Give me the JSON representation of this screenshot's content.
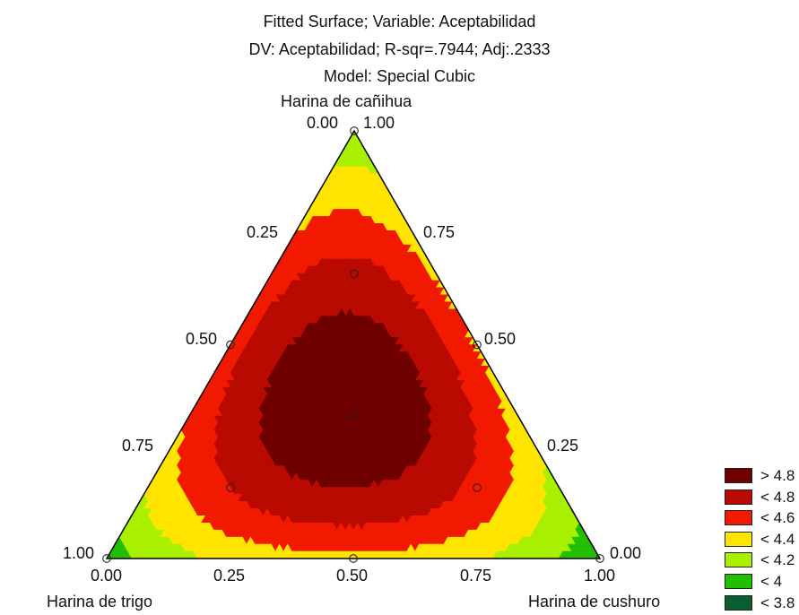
{
  "chart_data": {
    "type": "ternary contour",
    "title_lines": [
      "Fitted Surface; Variable: Aceptabilidad",
      "DV: Aceptabilidad; R-sqr=.7944; Adj:.2333",
      "Model: Special Cubic"
    ],
    "vertices": {
      "top": "Harina de cañihua",
      "bottom_left": "Harina de trigo",
      "bottom_right": "Harina de cushuro"
    },
    "ticks": {
      "left": [
        "0.00",
        "0.25",
        "0.50",
        "0.75",
        "1.00"
      ],
      "right": [
        "1.00",
        "0.75",
        "0.50",
        "0.25",
        "0.00"
      ],
      "bottom": [
        "0.00",
        "0.25",
        "0.50",
        "0.75",
        "1.00"
      ]
    },
    "design_points": [
      {
        "trigo": 0,
        "cushuro": 0,
        "canihua": 1
      },
      {
        "trigo": 0.5,
        "cushuro": 0,
        "canihua": 0.5
      },
      {
        "trigo": 0,
        "cushuro": 0.5,
        "canihua": 0.5
      },
      {
        "trigo": 1,
        "cushuro": 0,
        "canihua": 0
      },
      {
        "trigo": 0.5,
        "cushuro": 0.5,
        "canihua": 0
      },
      {
        "trigo": 0,
        "cushuro": 1,
        "canihua": 0
      },
      {
        "trigo": 0.333,
        "cushuro": 0.333,
        "canihua": 0.333
      },
      {
        "trigo": 0.167,
        "cushuro": 0.167,
        "canihua": 0.667
      },
      {
        "trigo": 0.667,
        "cushuro": 0.167,
        "canihua": 0.167
      },
      {
        "trigo": 0.167,
        "cushuro": 0.667,
        "canihua": 0.167
      }
    ],
    "legend": [
      {
        "label": "> 4.8",
        "color": "#6e0000"
      },
      {
        "label": "< 4.8",
        "color": "#b80a00"
      },
      {
        "label": "< 4.6",
        "color": "#f11a00"
      },
      {
        "label": "< 4.4",
        "color": "#ffe400"
      },
      {
        "label": "< 4.2",
        "color": "#a8f000"
      },
      {
        "label": "< 4",
        "color": "#22bf00"
      },
      {
        "label": "< 3.8",
        "color": "#0a5e32"
      }
    ],
    "levels": [
      3.8,
      4.0,
      4.2,
      4.4,
      4.6,
      4.8
    ]
  }
}
